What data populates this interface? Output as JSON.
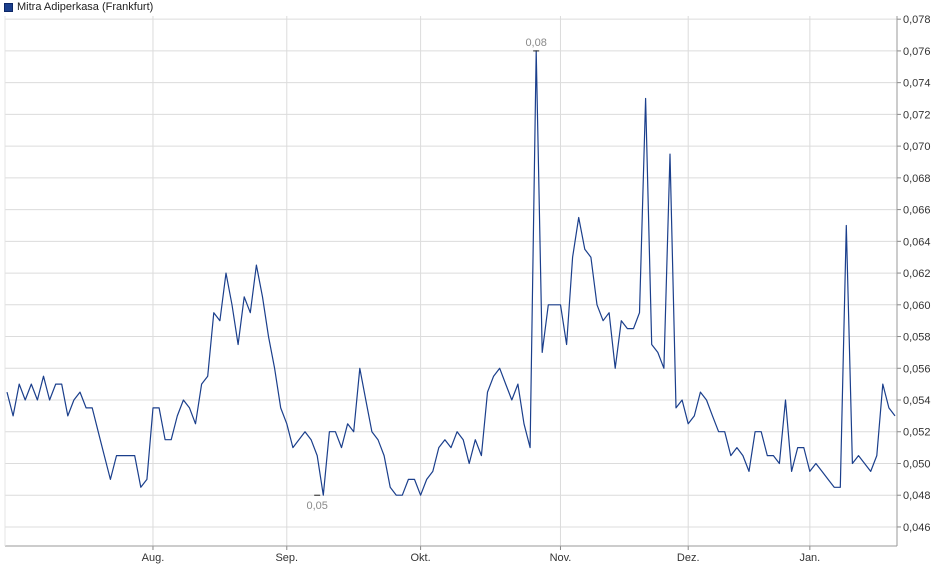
{
  "chart_data": {
    "type": "line",
    "legend": "Mitra Adiperkasa (Frankfurt)",
    "series_color": "#1b3f8c",
    "grid": true,
    "ylim": [
      0.0448,
      0.0782
    ],
    "y_ticks": [
      "0,046",
      "0,048",
      "0,050",
      "0,052",
      "0,054",
      "0,056",
      "0,058",
      "0,060",
      "0,062",
      "0,064",
      "0,066",
      "0,068",
      "0,070",
      "0,072",
      "0,074",
      "0,076",
      "0,078"
    ],
    "month_ticks": [
      {
        "label": "Aug.",
        "index": 24
      },
      {
        "label": "Sep.",
        "index": 46
      },
      {
        "label": "Okt.",
        "index": 68
      },
      {
        "label": "Nov.",
        "index": 91
      },
      {
        "label": "Dez.",
        "index": 112
      },
      {
        "label": "Jan.",
        "index": 132
      }
    ],
    "annotations": [
      {
        "label": "0,08",
        "index": 87,
        "value": 0.076,
        "position": "above"
      },
      {
        "label": "0,05",
        "index": 51,
        "value": 0.048,
        "position": "below"
      }
    ],
    "values": [
      0.0545,
      0.053,
      0.055,
      0.054,
      0.055,
      0.054,
      0.0555,
      0.054,
      0.055,
      0.055,
      0.053,
      0.054,
      0.0545,
      0.0535,
      0.0535,
      0.052,
      0.0505,
      0.049,
      0.0505,
      0.0505,
      0.0505,
      0.0505,
      0.0485,
      0.049,
      0.0535,
      0.0535,
      0.0515,
      0.0515,
      0.053,
      0.054,
      0.0535,
      0.0525,
      0.055,
      0.0555,
      0.0595,
      0.059,
      0.062,
      0.06,
      0.0575,
      0.0605,
      0.0595,
      0.0625,
      0.0605,
      0.058,
      0.056,
      0.0535,
      0.0525,
      0.051,
      0.0515,
      0.052,
      0.0515,
      0.0505,
      0.048,
      0.052,
      0.052,
      0.051,
      0.0525,
      0.052,
      0.056,
      0.054,
      0.052,
      0.0515,
      0.0505,
      0.0485,
      0.048,
      0.048,
      0.049,
      0.049,
      0.048,
      0.049,
      0.0495,
      0.051,
      0.0515,
      0.051,
      0.052,
      0.0515,
      0.05,
      0.0515,
      0.0505,
      0.0545,
      0.0555,
      0.056,
      0.055,
      0.054,
      0.055,
      0.0525,
      0.051,
      0.076,
      0.057,
      0.06,
      0.06,
      0.06,
      0.0575,
      0.063,
      0.0655,
      0.0635,
      0.063,
      0.06,
      0.059,
      0.0595,
      0.056,
      0.059,
      0.0585,
      0.0585,
      0.0595,
      0.073,
      0.0575,
      0.057,
      0.056,
      0.0695,
      0.0535,
      0.054,
      0.0525,
      0.053,
      0.0545,
      0.054,
      0.053,
      0.052,
      0.052,
      0.0505,
      0.051,
      0.0505,
      0.0495,
      0.052,
      0.052,
      0.0505,
      0.0505,
      0.05,
      0.054,
      0.0495,
      0.051,
      0.051,
      0.0495,
      0.05,
      0.0495,
      0.049,
      0.0485,
      0.0485,
      0.065,
      0.05,
      0.0505,
      0.05,
      0.0495,
      0.0505,
      0.055,
      0.0535,
      0.053
    ]
  }
}
